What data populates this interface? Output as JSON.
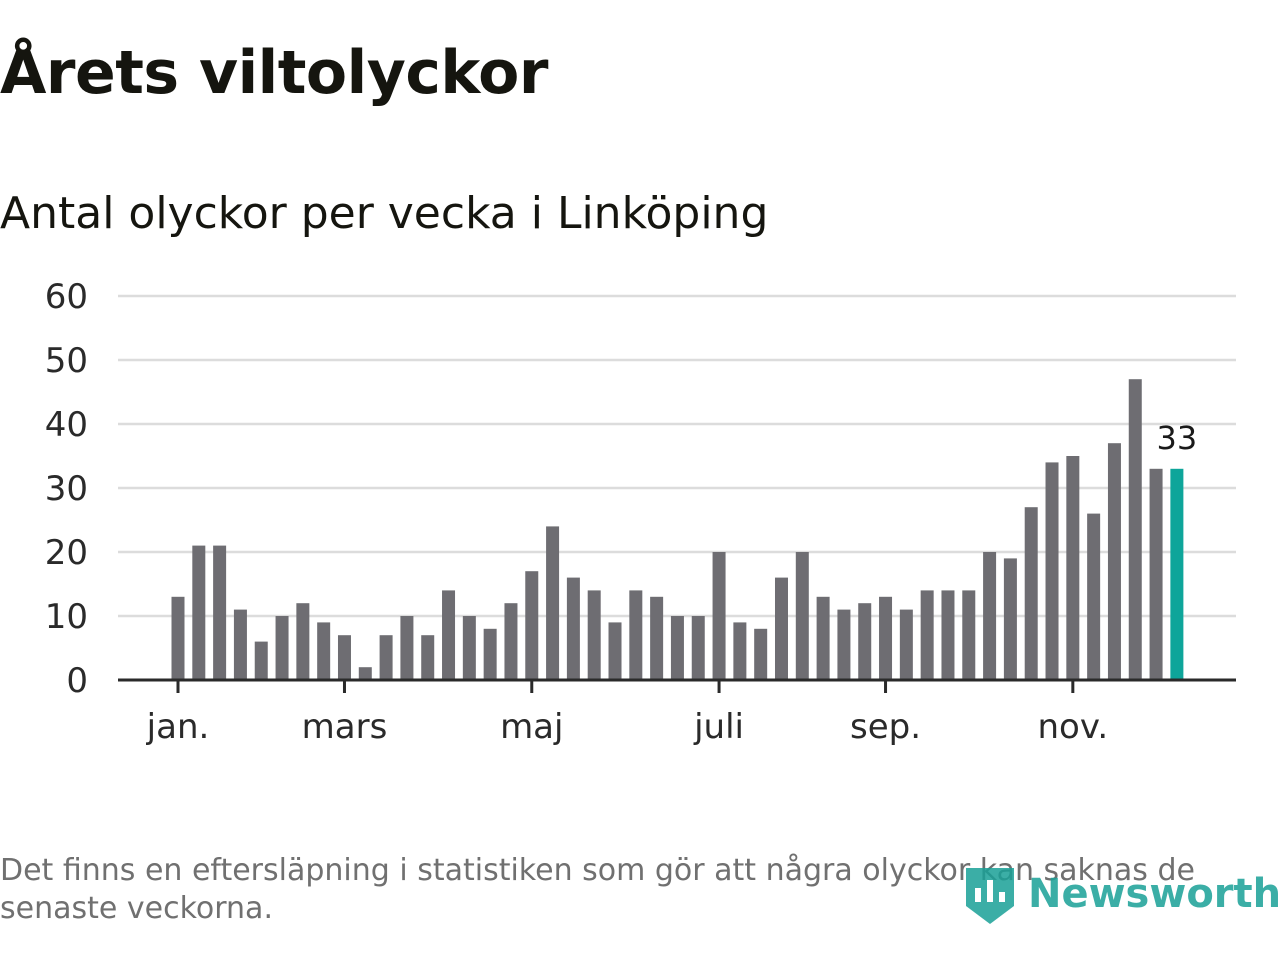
{
  "title": "Årets viltolyckor",
  "subtitle": "Antal olyckor per vecka i Linköping",
  "footnote": "Det finns en eftersläpning i statistiken som gör att några olyckor kan saknas de senaste veckorna.",
  "logo_text": "Newsworthy",
  "colors": {
    "bar": "#6e6d72",
    "highlight": "#0ea59a",
    "grid": "#dcdcdc",
    "axis": "#2a2a2a",
    "text": "#2a2a2a"
  },
  "chart_data": {
    "type": "bar",
    "title": "Antal olyckor per vecka i Linköping",
    "xlabel": "",
    "ylabel": "",
    "ylim": [
      0,
      60
    ],
    "yticks": [
      0,
      10,
      20,
      30,
      40,
      50,
      60
    ],
    "grid": true,
    "week_start": 1,
    "month_ticks": [
      {
        "label": "jan.",
        "week": 1
      },
      {
        "label": "mars",
        "week": 9
      },
      {
        "label": "maj",
        "week": 18
      },
      {
        "label": "juli",
        "week": 27
      },
      {
        "label": "sep.",
        "week": 35
      },
      {
        "label": "nov.",
        "week": 44
      }
    ],
    "values": [
      13,
      21,
      21,
      11,
      6,
      10,
      12,
      9,
      7,
      2,
      7,
      10,
      7,
      14,
      10,
      8,
      12,
      17,
      24,
      16,
      14,
      9,
      14,
      13,
      10,
      10,
      20,
      9,
      8,
      16,
      20,
      13,
      11,
      12,
      13,
      11,
      14,
      14,
      14,
      20,
      19,
      27,
      34,
      35,
      26,
      37,
      47,
      33,
      33
    ],
    "highlight_last": true,
    "last_value_label": "33"
  }
}
